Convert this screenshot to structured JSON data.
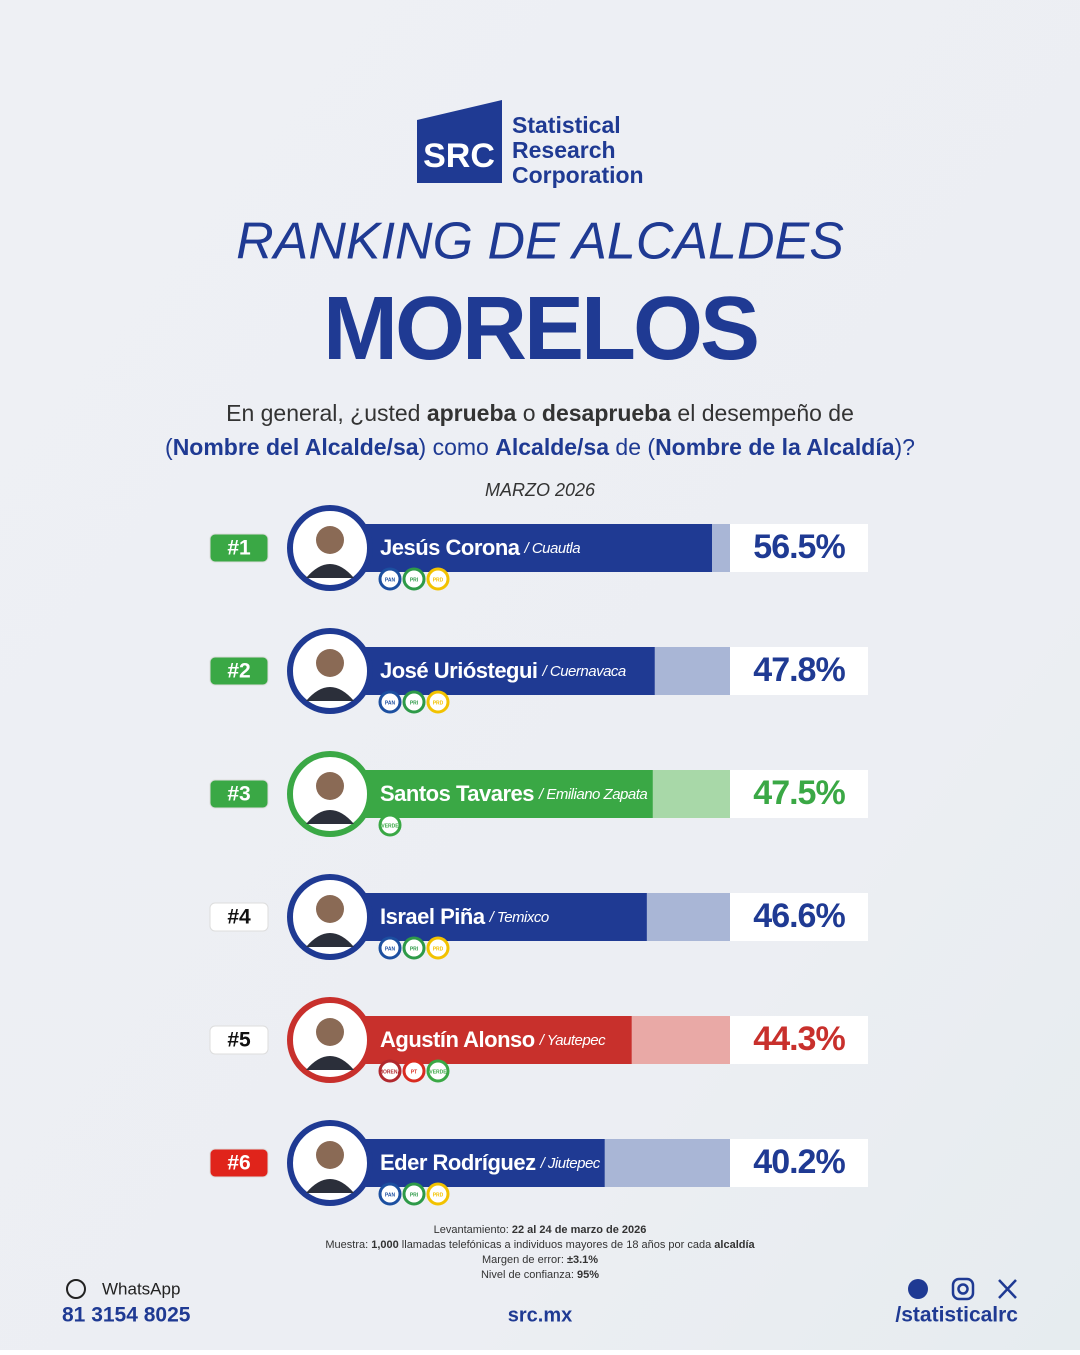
{
  "logo": {
    "mark": "SRC",
    "name": [
      "Statistical",
      "Research",
      "Corporation"
    ]
  },
  "title": "RANKING DE ALCALDES",
  "subtitle": "MORELOS",
  "question": [
    [
      {
        "t": "En general, ¿usted "
      },
      {
        "t": "aprueba",
        "b": true
      },
      {
        "t": " o "
      },
      {
        "t": "desaprueba",
        "b": true
      },
      {
        "t": " el desempeño de"
      }
    ],
    [
      {
        "t": "("
      },
      {
        "t": "Nombre del Alcalde/sa",
        "b": true
      },
      {
        "t": ") como "
      },
      {
        "t": "Alcalde/sa",
        "b": true
      },
      {
        "t": " de ("
      },
      {
        "t": "Nombre de la Alcaldía",
        "b": true
      },
      {
        "t": ")?"
      }
    ]
  ],
  "date": "MARZO 2026",
  "chart_data": {
    "type": "bar",
    "categories": [
      "Jesús Corona",
      "José Urióstegui",
      "Santos Tavares",
      "Israel Piña",
      "Agustín Alonso",
      "Eder Rodríguez"
    ],
    "municipalities": [
      "/ Cuautla",
      "/ Cuernavaca",
      "/ Emiliano Zapata",
      "/ Temixco",
      "/ Yautepec",
      "/ Jiutepec"
    ],
    "ranks": [
      "#1",
      "#2",
      "#3",
      "#4",
      "#5",
      "#6"
    ],
    "values": [
      56.5,
      47.8,
      47.5,
      46.6,
      44.3,
      40.2
    ],
    "value_labels": [
      "56.5%",
      "47.8%",
      "47.5%",
      "46.6%",
      "44.3%",
      "40.2%"
    ],
    "colors": [
      "#1f3a93",
      "#1f3a93",
      "#3aa845",
      "#1f3a93",
      "#c8302c",
      "#1f3a93"
    ],
    "track_colors": [
      "#a9b6d6",
      "#a9b6d6",
      "#a8d8a8",
      "#a9b6d6",
      "#e9a9a6",
      "#a9b6d6"
    ],
    "rank_colors": [
      "#3aa845",
      "#3aa845",
      "#3aa845",
      "#ffffff",
      "#ffffff",
      "#e0241b"
    ],
    "rank_text_colors": [
      "#ffffff",
      "#ffffff",
      "#ffffff",
      "#111111",
      "#111111",
      "#ffffff"
    ],
    "parties": [
      [
        {
          "name": "PAN",
          "color": "#1c4fa0"
        },
        {
          "name": "PRI",
          "color": "#2e9a48"
        },
        {
          "name": "PRD",
          "color": "#f2c200"
        }
      ],
      [
        {
          "name": "PAN",
          "color": "#1c4fa0"
        },
        {
          "name": "PRI",
          "color": "#2e9a48"
        },
        {
          "name": "PRD",
          "color": "#f2c200"
        }
      ],
      [
        {
          "name": "VERDE",
          "color": "#3aa845"
        }
      ],
      [
        {
          "name": "PAN",
          "color": "#1c4fa0"
        },
        {
          "name": "PRI",
          "color": "#2e9a48"
        },
        {
          "name": "PRD",
          "color": "#f2c200"
        }
      ],
      [
        {
          "name": "MORENA",
          "color": "#b0282e"
        },
        {
          "name": "PT",
          "color": "#d92b20"
        },
        {
          "name": "VERDE",
          "color": "#3aa845"
        }
      ],
      [
        {
          "name": "PAN",
          "color": "#1c4fa0"
        },
        {
          "name": "PRI",
          "color": "#2e9a48"
        },
        {
          "name": "PRD",
          "color": "#f2c200"
        }
      ]
    ]
  },
  "methodology": [
    [
      {
        "t": "Levantamiento: "
      },
      {
        "t": "22 al 24 de marzo de 2026",
        "b": true
      }
    ],
    [
      {
        "t": "Muestra: "
      },
      {
        "t": "1,000",
        "b": true
      },
      {
        "t": " llamadas telefónicas a individuos mayores de 18 años por cada "
      },
      {
        "t": "alcaldía",
        "b": true
      }
    ],
    [
      {
        "t": "Margen de error: "
      },
      {
        "t": "±3.1%",
        "b": true
      }
    ],
    [
      {
        "t": "Nivel de confianza: "
      },
      {
        "t": "95%",
        "b": true
      }
    ]
  ],
  "footer": {
    "whatsapp_label": "WhatsApp",
    "phone": "81 3154 8025",
    "site": "src.mx",
    "social": "/statisticalrc"
  }
}
